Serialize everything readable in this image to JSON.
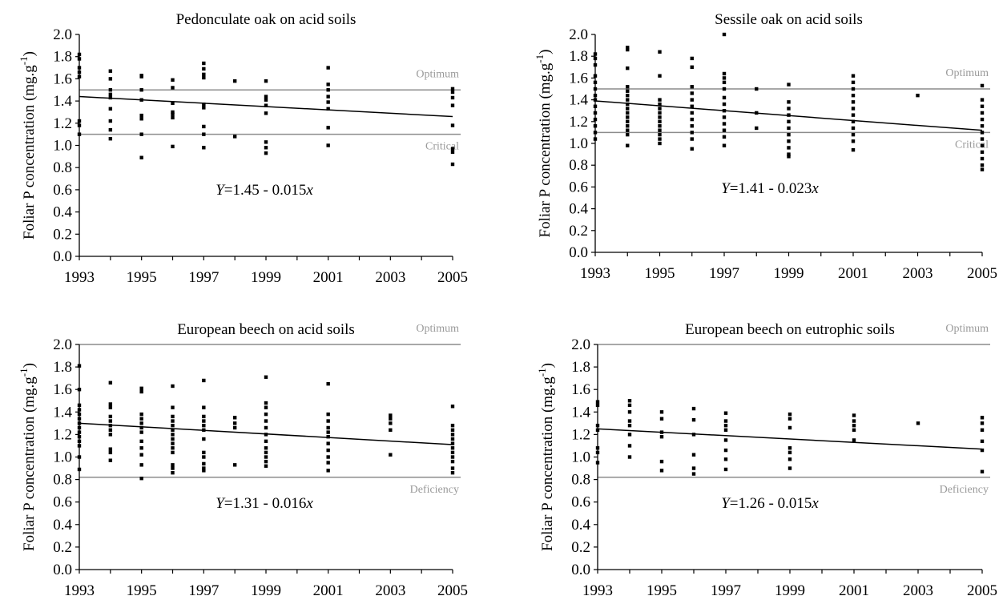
{
  "figure": {
    "ylabel_main": "Foliar P concentration (mg.g",
    "ylabel_sup": "-1",
    "ylabel_end": ")",
    "xlabel": ""
  },
  "chart_data": [
    {
      "type": "scatter",
      "title": "Pedonculate oak on acid soils",
      "xlim": [
        1993,
        2005
      ],
      "ylim": [
        0.0,
        2.0
      ],
      "x_ticks": [
        "1993",
        "1995",
        "1997",
        "1999",
        "2001",
        "2003",
        "2005"
      ],
      "y_ticks": [
        "0.0",
        "0.2",
        "0.4",
        "0.6",
        "0.8",
        "1.0",
        "1.2",
        "1.4",
        "1.6",
        "1.8",
        "2.0"
      ],
      "reference_lines": [
        {
          "name": "Optimum",
          "y": 1.5
        },
        {
          "name": "Critical",
          "y": 1.1
        }
      ],
      "regression": {
        "label_prefix": "Y",
        "label_suffix": "=1.45 - 0.015",
        "label_var": "x",
        "x_start": 1993,
        "y_start": 1.44,
        "x_end": 2005,
        "y_end": 1.26
      },
      "points": [
        {
          "x": 1993,
          "y": [
            1.82,
            1.78,
            1.7,
            1.66,
            1.62,
            1.22,
            1.18,
            1.1
          ]
        },
        {
          "x": 1994,
          "y": [
            1.67,
            1.6,
            1.5,
            1.46,
            1.43,
            1.33,
            1.22,
            1.14,
            1.06
          ]
        },
        {
          "x": 1995,
          "y": [
            1.63,
            1.62,
            1.5,
            1.41,
            1.27,
            1.24,
            1.1,
            0.89
          ]
        },
        {
          "x": 1996,
          "y": [
            1.59,
            1.52,
            1.38,
            1.3,
            1.28,
            1.25,
            0.99
          ]
        },
        {
          "x": 1997,
          "y": [
            1.74,
            1.69,
            1.64,
            1.61,
            1.37,
            1.34,
            1.17,
            1.1,
            0.98
          ]
        },
        {
          "x": 1998,
          "y": [
            1.58,
            1.08
          ]
        },
        {
          "x": 1999,
          "y": [
            1.58,
            1.44,
            1.41,
            1.36,
            1.29,
            1.03,
            0.98,
            0.93
          ]
        },
        {
          "x": 2001,
          "y": [
            1.7,
            1.55,
            1.5,
            1.44,
            1.39,
            1.33,
            1.16,
            1.0
          ]
        },
        {
          "x": 2005,
          "y": [
            1.51,
            1.48,
            1.43,
            1.36,
            1.18,
            0.97,
            0.94,
            0.83
          ]
        }
      ]
    },
    {
      "type": "scatter",
      "title": "Sessile oak on acid soils",
      "xlim": [
        1993,
        2005
      ],
      "ylim": [
        0.0,
        2.0
      ],
      "x_ticks": [
        "1993",
        "1995",
        "1997",
        "1999",
        "2001",
        "2003",
        "2005"
      ],
      "y_ticks": [
        "0.0",
        "0.2",
        "0.4",
        "0.6",
        "0.8",
        "1.0",
        "1.2",
        "1.4",
        "1.6",
        "1.8",
        "2.0"
      ],
      "reference_lines": [
        {
          "name": "Optimum",
          "y": 1.5
        },
        {
          "name": "Critical",
          "y": 1.1
        }
      ],
      "regression": {
        "label_prefix": "Y",
        "label_suffix": "=1.41 - 0.023",
        "label_var": "x",
        "x_start": 1993,
        "y_start": 1.39,
        "x_end": 2005,
        "y_end": 1.12
      },
      "points": [
        {
          "x": 1993,
          "y": [
            1.82,
            1.78,
            1.72,
            1.62,
            1.56,
            1.5,
            1.44,
            1.4,
            1.34,
            1.28,
            1.22,
            1.16,
            1.1,
            1.04
          ]
        },
        {
          "x": 1994,
          "y": [
            1.88,
            1.86,
            1.69,
            1.52,
            1.48,
            1.44,
            1.4,
            1.36,
            1.32,
            1.28,
            1.24,
            1.2,
            1.16,
            1.12,
            1.08,
            0.98
          ]
        },
        {
          "x": 1995,
          "y": [
            1.84,
            1.62,
            1.4,
            1.36,
            1.32,
            1.28,
            1.24,
            1.2,
            1.16,
            1.12,
            1.08,
            1.04,
            1.0
          ]
        },
        {
          "x": 1996,
          "y": [
            1.78,
            1.7,
            1.52,
            1.46,
            1.4,
            1.34,
            1.28,
            1.22,
            1.16,
            1.1,
            1.04,
            0.95
          ]
        },
        {
          "x": 1997,
          "y": [
            2.0,
            1.64,
            1.6,
            1.56,
            1.5,
            1.42,
            1.36,
            1.3,
            1.24,
            1.18,
            1.12,
            1.06,
            0.98
          ]
        },
        {
          "x": 1998,
          "y": [
            1.5,
            1.28,
            1.14
          ]
        },
        {
          "x": 1999,
          "y": [
            1.54,
            1.38,
            1.32,
            1.26,
            1.2,
            1.14,
            1.08,
            1.02,
            0.96,
            0.9,
            0.88
          ]
        },
        {
          "x": 2001,
          "y": [
            1.62,
            1.56,
            1.5,
            1.44,
            1.38,
            1.32,
            1.26,
            1.2,
            1.14,
            1.08,
            1.02,
            0.94
          ]
        },
        {
          "x": 2003,
          "y": [
            1.44
          ]
        },
        {
          "x": 2005,
          "y": [
            1.53,
            1.4,
            1.34,
            1.28,
            1.22,
            1.16,
            1.1,
            1.04,
            0.98,
            0.92,
            0.86,
            0.8,
            0.76
          ]
        }
      ]
    },
    {
      "type": "scatter",
      "title": "European beech on acid soils",
      "xlim": [
        1993,
        2005
      ],
      "ylim": [
        0.0,
        2.0
      ],
      "x_ticks": [
        "1993",
        "1995",
        "1997",
        "1999",
        "2001",
        "2003",
        "2005"
      ],
      "y_ticks": [
        "0.0",
        "0.2",
        "0.4",
        "0.6",
        "0.8",
        "1.0",
        "1.2",
        "1.4",
        "1.6",
        "1.8",
        "2.0"
      ],
      "reference_lines": [
        {
          "name": "Optimum",
          "y": 2.0
        },
        {
          "name": "Deficiency",
          "y": 0.82
        }
      ],
      "regression": {
        "label_prefix": "Y",
        "label_suffix": "=1.31 - 0.016",
        "label_var": "x",
        "x_start": 1993,
        "y_start": 1.3,
        "x_end": 2005,
        "y_end": 1.11
      },
      "points": [
        {
          "x": 1993,
          "y": [
            1.81,
            1.6,
            1.46,
            1.42,
            1.38,
            1.34,
            1.3,
            1.26,
            1.22,
            1.18,
            1.14,
            1.1,
            1.0,
            0.89
          ]
        },
        {
          "x": 1994,
          "y": [
            1.66,
            1.47,
            1.44,
            1.36,
            1.32,
            1.28,
            1.24,
            1.2,
            1.07,
            1.04,
            0.97
          ]
        },
        {
          "x": 1995,
          "y": [
            1.61,
            1.58,
            1.38,
            1.34,
            1.3,
            1.26,
            1.22,
            1.14,
            1.08,
            1.02,
            0.93,
            0.81
          ]
        },
        {
          "x": 1996,
          "y": [
            1.63,
            1.44,
            1.36,
            1.32,
            1.28,
            1.24,
            1.2,
            1.16,
            1.12,
            1.08,
            1.04,
            0.93,
            0.9,
            0.86
          ]
        },
        {
          "x": 1997,
          "y": [
            1.68,
            1.44,
            1.36,
            1.32,
            1.28,
            1.24,
            1.16,
            1.04,
            1.0,
            0.94,
            0.9,
            0.88
          ]
        },
        {
          "x": 1998,
          "y": [
            1.35,
            1.3,
            1.26,
            0.93
          ]
        },
        {
          "x": 1999,
          "y": [
            1.71,
            1.48,
            1.44,
            1.38,
            1.32,
            1.26,
            1.2,
            1.14,
            1.08,
            1.04,
            1.0,
            0.96,
            0.92
          ]
        },
        {
          "x": 2001,
          "y": [
            1.65,
            1.38,
            1.32,
            1.26,
            1.22,
            1.18,
            1.12,
            1.06,
            1.0,
            0.95,
            0.88
          ]
        },
        {
          "x": 2003,
          "y": [
            1.37,
            1.34,
            1.3,
            1.24,
            1.02
          ]
        },
        {
          "x": 2005,
          "y": [
            1.45,
            1.28,
            1.24,
            1.2,
            1.16,
            1.12,
            1.08,
            1.04,
            1.0,
            0.96,
            0.9,
            0.86
          ]
        }
      ]
    },
    {
      "type": "scatter",
      "title": "European beech on eutrophic soils",
      "xlim": [
        1993,
        2005
      ],
      "ylim": [
        0.0,
        2.0
      ],
      "x_ticks": [
        "1993",
        "1995",
        "1997",
        "1999",
        "2001",
        "2003",
        "2005"
      ],
      "y_ticks": [
        "0.0",
        "0.2",
        "0.4",
        "0.6",
        "0.8",
        "1.0",
        "1.2",
        "1.4",
        "1.6",
        "1.8",
        "2.0"
      ],
      "reference_lines": [
        {
          "name": "Optimum",
          "y": 2.0
        },
        {
          "name": "Deficiency",
          "y": 0.82
        }
      ],
      "regression": {
        "label_prefix": "Y",
        "label_suffix": "=1.26 - 0.015",
        "label_var": "x",
        "x_start": 1993,
        "y_start": 1.25,
        "x_end": 2005,
        "y_end": 1.07
      },
      "points": [
        {
          "x": 1993,
          "y": [
            1.49,
            1.46,
            1.28,
            1.24,
            1.08,
            1.04,
            0.95
          ]
        },
        {
          "x": 1994,
          "y": [
            1.5,
            1.46,
            1.4,
            1.32,
            1.28,
            1.2,
            1.1,
            1.0
          ]
        },
        {
          "x": 1995,
          "y": [
            1.4,
            1.34,
            1.22,
            1.18,
            0.96,
            0.88
          ]
        },
        {
          "x": 1996,
          "y": [
            1.43,
            1.33,
            1.2,
            1.02,
            0.9,
            0.85
          ]
        },
        {
          "x": 1997,
          "y": [
            1.39,
            1.32,
            1.28,
            1.24,
            1.15,
            1.06,
            0.98,
            0.89
          ]
        },
        {
          "x": 1999,
          "y": [
            1.38,
            1.34,
            1.26,
            1.08,
            1.04,
            0.98,
            0.9
          ]
        },
        {
          "x": 2001,
          "y": [
            1.37,
            1.32,
            1.28,
            1.24,
            1.15
          ]
        },
        {
          "x": 2003,
          "y": [
            1.3
          ]
        },
        {
          "x": 2005,
          "y": [
            1.35,
            1.3,
            1.24,
            1.14,
            1.06,
            0.87
          ]
        }
      ]
    }
  ]
}
